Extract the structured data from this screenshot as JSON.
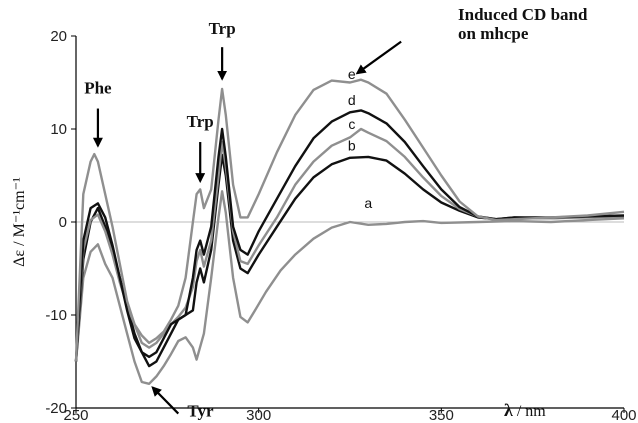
{
  "chart_data": {
    "type": "line",
    "x_axis": {
      "ticks": [
        250,
        300,
        350,
        400
      ],
      "range": [
        250,
        400
      ],
      "label_symbol": "λ",
      "label_unit": " / nm"
    },
    "y_axis": {
      "ticks": [
        20,
        10,
        0,
        -10,
        -20
      ],
      "range": [
        -20,
        20
      ],
      "label_html": "Δε / M⁻¹cm⁻¹"
    },
    "zero_line": true,
    "series": [
      {
        "name": "a",
        "color": "#8f8f8f",
        "points": [
          [
            250,
            -15
          ],
          [
            252,
            -6
          ],
          [
            254,
            -3.2
          ],
          [
            256,
            -2.4
          ],
          [
            258,
            -4.5
          ],
          [
            260,
            -6
          ],
          [
            262,
            -9
          ],
          [
            264,
            -12
          ],
          [
            266,
            -15
          ],
          [
            268,
            -17.2
          ],
          [
            270,
            -17.4
          ],
          [
            272,
            -16.6
          ],
          [
            274,
            -15.5
          ],
          [
            276,
            -14.2
          ],
          [
            278,
            -12.8
          ],
          [
            280,
            -12.4
          ],
          [
            282,
            -13.5
          ],
          [
            283,
            -14.8
          ],
          [
            285,
            -12
          ],
          [
            287,
            -6
          ],
          [
            289,
            0.5
          ],
          [
            290,
            3.3
          ],
          [
            291,
            1
          ],
          [
            293,
            -6
          ],
          [
            295,
            -10.2
          ],
          [
            297,
            -10.8
          ],
          [
            299,
            -9.5
          ],
          [
            302,
            -7.5
          ],
          [
            306,
            -5.2
          ],
          [
            310,
            -3.5
          ],
          [
            315,
            -1.8
          ],
          [
            320,
            -0.6
          ],
          [
            325,
            0
          ],
          [
            330,
            -0.3
          ],
          [
            335,
            -0.2
          ],
          [
            340,
            0
          ],
          [
            345,
            0.1
          ],
          [
            350,
            -0.1
          ],
          [
            360,
            0
          ],
          [
            370,
            0.1
          ],
          [
            380,
            0
          ],
          [
            390,
            0.2
          ],
          [
            400,
            0.4
          ]
        ]
      },
      {
        "name": "b",
        "color": "#111111",
        "points": [
          [
            250,
            -15
          ],
          [
            252,
            -4
          ],
          [
            254,
            0
          ],
          [
            256,
            1.5
          ],
          [
            258,
            -0.5
          ],
          [
            260,
            -3
          ],
          [
            262,
            -6
          ],
          [
            264,
            -9
          ],
          [
            266,
            -12
          ],
          [
            268,
            -14
          ],
          [
            270,
            -15.5
          ],
          [
            272,
            -15
          ],
          [
            274,
            -13.5
          ],
          [
            276,
            -12
          ],
          [
            278,
            -10.5
          ],
          [
            280,
            -10
          ],
          [
            282,
            -9.5
          ],
          [
            283,
            -6.5
          ],
          [
            284,
            -5
          ],
          [
            285,
            -6.5
          ],
          [
            287,
            -3
          ],
          [
            289,
            4
          ],
          [
            290,
            7.2
          ],
          [
            291,
            5
          ],
          [
            293,
            -2
          ],
          [
            295,
            -5
          ],
          [
            297,
            -5.5
          ],
          [
            300,
            -3.5
          ],
          [
            305,
            -0.5
          ],
          [
            310,
            2.5
          ],
          [
            315,
            4.8
          ],
          [
            320,
            6.2
          ],
          [
            325,
            6.9
          ],
          [
            330,
            7
          ],
          [
            335,
            6.6
          ],
          [
            340,
            5.2
          ],
          [
            345,
            3.5
          ],
          [
            350,
            2.1
          ],
          [
            355,
            1.2
          ],
          [
            360,
            0.5
          ],
          [
            365,
            0.3
          ],
          [
            370,
            0.5
          ],
          [
            380,
            0.4
          ],
          [
            390,
            0.6
          ],
          [
            400,
            0.6
          ]
        ]
      },
      {
        "name": "c",
        "color": "#8f8f8f",
        "points": [
          [
            250,
            -15
          ],
          [
            252,
            -3
          ],
          [
            254,
            0.2
          ],
          [
            256,
            0.8
          ],
          [
            258,
            -1
          ],
          [
            260,
            -3.5
          ],
          [
            262,
            -6.5
          ],
          [
            264,
            -9
          ],
          [
            266,
            -11
          ],
          [
            268,
            -13
          ],
          [
            270,
            -13.5
          ],
          [
            272,
            -13
          ],
          [
            274,
            -12
          ],
          [
            276,
            -11
          ],
          [
            278,
            -10.2
          ],
          [
            280,
            -9.2
          ],
          [
            282,
            -7
          ],
          [
            283,
            -4.2
          ],
          [
            284,
            -3
          ],
          [
            285,
            -4.8
          ],
          [
            287,
            -2
          ],
          [
            289,
            5
          ],
          [
            290,
            8.6
          ],
          [
            291,
            6
          ],
          [
            293,
            -1
          ],
          [
            295,
            -4.2
          ],
          [
            297,
            -4.5
          ],
          [
            300,
            -2.5
          ],
          [
            305,
            0.5
          ],
          [
            310,
            4
          ],
          [
            315,
            6.5
          ],
          [
            320,
            8.2
          ],
          [
            325,
            9.1
          ],
          [
            327,
            9.7
          ],
          [
            328,
            10
          ],
          [
            330,
            9.6
          ],
          [
            335,
            8.7
          ],
          [
            340,
            7
          ],
          [
            345,
            4.8
          ],
          [
            350,
            2.8
          ],
          [
            355,
            1.4
          ],
          [
            360,
            0.6
          ],
          [
            365,
            0.3
          ],
          [
            370,
            0.4
          ],
          [
            380,
            0.4
          ],
          [
            390,
            0.5
          ],
          [
            400,
            0.6
          ]
        ]
      },
      {
        "name": "d",
        "color": "#111111",
        "points": [
          [
            250,
            -15
          ],
          [
            252,
            -2
          ],
          [
            254,
            1.5
          ],
          [
            256,
            2
          ],
          [
            258,
            0.5
          ],
          [
            260,
            -2.5
          ],
          [
            262,
            -6
          ],
          [
            264,
            -9.5
          ],
          [
            266,
            -12.5
          ],
          [
            268,
            -14
          ],
          [
            270,
            -14.5
          ],
          [
            272,
            -14
          ],
          [
            274,
            -12.5
          ],
          [
            276,
            -11
          ],
          [
            278,
            -10.5
          ],
          [
            280,
            -10
          ],
          [
            282,
            -6
          ],
          [
            283,
            -3
          ],
          [
            284,
            -2
          ],
          [
            285,
            -3.5
          ],
          [
            287,
            -0.5
          ],
          [
            289,
            7
          ],
          [
            290,
            10
          ],
          [
            291,
            7
          ],
          [
            293,
            -0.5
          ],
          [
            295,
            -3
          ],
          [
            297,
            -3.5
          ],
          [
            300,
            -1
          ],
          [
            305,
            2.5
          ],
          [
            310,
            6
          ],
          [
            315,
            9
          ],
          [
            320,
            10.8
          ],
          [
            325,
            11.8
          ],
          [
            328,
            12
          ],
          [
            330,
            11.7
          ],
          [
            335,
            10.6
          ],
          [
            340,
            8.6
          ],
          [
            345,
            6
          ],
          [
            350,
            3.5
          ],
          [
            355,
            1.6
          ],
          [
            360,
            0.6
          ],
          [
            365,
            0.3
          ],
          [
            370,
            0.5
          ],
          [
            380,
            0.5
          ],
          [
            390,
            0.6
          ],
          [
            400,
            0.7
          ]
        ]
      },
      {
        "name": "e",
        "color": "#8f8f8f",
        "points": [
          [
            250,
            -15
          ],
          [
            252,
            3
          ],
          [
            254,
            6.5
          ],
          [
            255,
            7.3
          ],
          [
            256,
            6.5
          ],
          [
            258,
            3
          ],
          [
            260,
            -0.5
          ],
          [
            262,
            -4.5
          ],
          [
            264,
            -8.5
          ],
          [
            266,
            -11
          ],
          [
            268,
            -12.2
          ],
          [
            270,
            -13
          ],
          [
            272,
            -12.5
          ],
          [
            274,
            -11.8
          ],
          [
            276,
            -10.5
          ],
          [
            278,
            -9
          ],
          [
            280,
            -6
          ],
          [
            282,
            0
          ],
          [
            283,
            3
          ],
          [
            284,
            3.5
          ],
          [
            285,
            1.5
          ],
          [
            287,
            3.5
          ],
          [
            289,
            11
          ],
          [
            290,
            14.3
          ],
          [
            291,
            11.5
          ],
          [
            293,
            4
          ],
          [
            295,
            0.5
          ],
          [
            297,
            0.5
          ],
          [
            300,
            3
          ],
          [
            305,
            7.5
          ],
          [
            310,
            11.5
          ],
          [
            315,
            14.2
          ],
          [
            320,
            15.2
          ],
          [
            325,
            15
          ],
          [
            328,
            15.3
          ],
          [
            330,
            15
          ],
          [
            335,
            13.8
          ],
          [
            340,
            11
          ],
          [
            345,
            8
          ],
          [
            350,
            5
          ],
          [
            355,
            2.2
          ],
          [
            360,
            0.6
          ],
          [
            365,
            0.2
          ],
          [
            370,
            0.3
          ],
          [
            380,
            0.5
          ],
          [
            390,
            0.7
          ],
          [
            400,
            1.1
          ]
        ]
      }
    ],
    "curve_labels": [
      {
        "text": "a",
        "x": 330,
        "y": 1.5
      },
      {
        "text": "b",
        "x": 325.5,
        "y": 7.7
      },
      {
        "text": "c",
        "x": 325.5,
        "y": 10.0
      },
      {
        "text": "d",
        "x": 325.5,
        "y": 12.6
      },
      {
        "text": "e",
        "x": 325.5,
        "y": 15.4
      }
    ],
    "annotations": [
      {
        "text": "Phe",
        "arrow_to": [
          256,
          8.2
        ],
        "arrow_from": [
          256,
          12.2
        ],
        "label_at": [
          256,
          13.8
        ]
      },
      {
        "text": "Trp",
        "arrow_to": [
          284,
          4.4
        ],
        "arrow_from": [
          284,
          8.6
        ],
        "label_at": [
          284,
          10.2
        ]
      },
      {
        "text": "Trp",
        "arrow_to": [
          290,
          15.4
        ],
        "arrow_from": [
          290,
          18.8
        ],
        "label_at": [
          290,
          20.2
        ]
      },
      {
        "text": "Tyr",
        "arrow_to": [
          271,
          -17.8
        ],
        "arrow_from": [
          278,
          -20.6
        ],
        "label_at": [
          280.5,
          -20.9
        ]
      }
    ],
    "induced_label": {
      "lines": [
        "Induced CD band",
        "on mhcpe"
      ],
      "arrow_from": [
        339,
        19.4
      ],
      "arrow_to": [
        327,
        16.0
      ]
    }
  }
}
